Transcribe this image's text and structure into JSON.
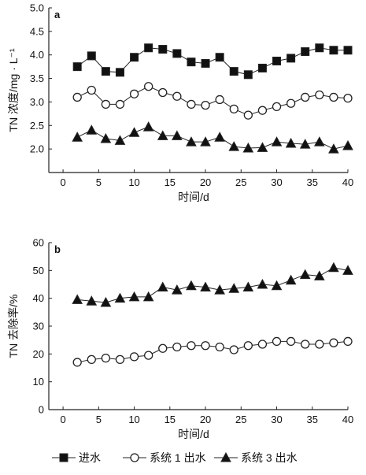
{
  "chart_data": [
    {
      "type": "line",
      "panel_label": "a",
      "ylabel": "TN 浓度/mg · L⁻¹",
      "xlabel": "时间/d",
      "xlim": [
        -2,
        40
      ],
      "ylim": [
        1.5,
        5.0
      ],
      "xticks": [
        0,
        5,
        10,
        15,
        20,
        25,
        30,
        35,
        40
      ],
      "yticks": [
        2.0,
        2.5,
        3.0,
        3.5,
        4.0,
        4.5,
        5.0
      ],
      "ytick_labels": [
        "2.0",
        "2.5",
        "3.0",
        "3.5",
        "4.0",
        "4.5",
        "5.0"
      ],
      "x": [
        2,
        4,
        6,
        8,
        10,
        12,
        14,
        16,
        18,
        20,
        22,
        24,
        26,
        28,
        30,
        32,
        34,
        36,
        38,
        40
      ],
      "series": [
        {
          "name": "进水",
          "marker": "filled-square",
          "values": [
            3.75,
            3.98,
            3.65,
            3.63,
            3.95,
            4.15,
            4.12,
            4.03,
            3.85,
            3.82,
            3.95,
            3.65,
            3.58,
            3.72,
            3.87,
            3.93,
            4.07,
            4.15,
            4.1,
            4.1
          ]
        },
        {
          "name": "系统 1 出水",
          "marker": "open-circle",
          "values": [
            3.1,
            3.25,
            2.95,
            2.95,
            3.17,
            3.33,
            3.2,
            3.12,
            2.95,
            2.93,
            3.05,
            2.85,
            2.72,
            2.82,
            2.9,
            2.97,
            3.1,
            3.15,
            3.1,
            3.08
          ]
        },
        {
          "name": "系统 3 出水",
          "marker": "filled-triangle",
          "values": [
            2.25,
            2.4,
            2.22,
            2.18,
            2.35,
            2.47,
            2.28,
            2.28,
            2.15,
            2.15,
            2.25,
            2.05,
            2.02,
            2.03,
            2.15,
            2.12,
            2.1,
            2.15,
            2.0,
            2.07
          ]
        }
      ]
    },
    {
      "type": "line",
      "panel_label": "b",
      "ylabel": "TN 去除率/%",
      "xlabel": "时间/d",
      "xlim": [
        -2,
        40
      ],
      "ylim": [
        0,
        60
      ],
      "xticks": [
        0,
        5,
        10,
        15,
        20,
        25,
        30,
        35,
        40
      ],
      "yticks": [
        0,
        10,
        20,
        30,
        40,
        50,
        60
      ],
      "ytick_labels": [
        "0",
        "10",
        "20",
        "30",
        "40",
        "50",
        "60"
      ],
      "x": [
        2,
        4,
        6,
        8,
        10,
        12,
        14,
        16,
        18,
        20,
        22,
        24,
        26,
        28,
        30,
        32,
        34,
        36,
        38,
        40
      ],
      "series": [
        {
          "name": "系统 1 出水",
          "marker": "open-circle",
          "values": [
            17,
            18,
            18.5,
            18,
            19,
            19.5,
            22,
            22.5,
            23,
            23,
            22.5,
            21.5,
            23,
            23.5,
            24.5,
            24.5,
            23.5,
            23.5,
            24,
            24.5
          ]
        },
        {
          "name": "系统 3 出水",
          "marker": "filled-triangle",
          "values": [
            39.5,
            39,
            38.5,
            40,
            40.5,
            40.5,
            44,
            43,
            44.5,
            44,
            43,
            43.5,
            44,
            45,
            44.5,
            46.5,
            48.5,
            48,
            51,
            50
          ]
        }
      ]
    }
  ],
  "legend": {
    "placement": "bottom",
    "items": [
      {
        "label": "进水",
        "marker": "filled-square"
      },
      {
        "label": "系统 1 出水",
        "marker": "open-circle"
      },
      {
        "label": "系统 3 出水",
        "marker": "filled-triangle"
      }
    ]
  },
  "colors": {
    "ink": "#222222",
    "marker_fill": "#111111",
    "open_marker_fill": "#ffffff"
  }
}
